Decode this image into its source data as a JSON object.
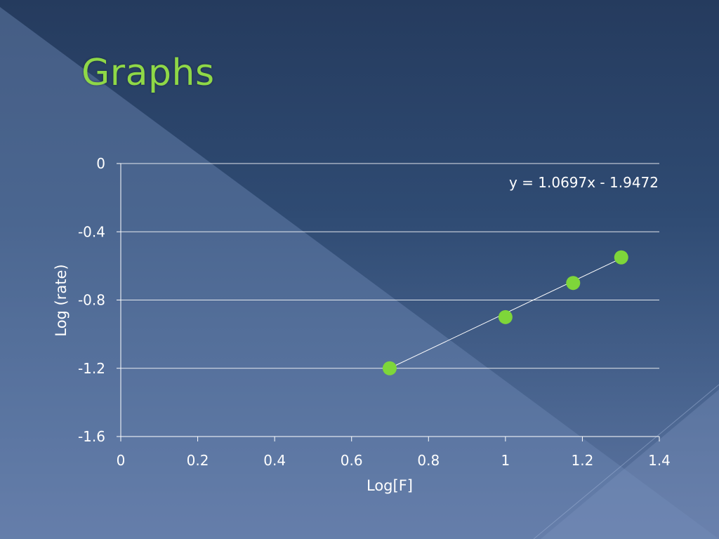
{
  "slide": {
    "title": "Graphs",
    "colors": {
      "title": "#8fd847",
      "marker": "#7ed63a",
      "axis": "#ffffff"
    }
  },
  "chart_data": {
    "type": "scatter",
    "title": "",
    "xlabel": "Log[F]",
    "ylabel": "Log (rate)",
    "xlim": [
      0,
      1.4
    ],
    "ylim": [
      -1.6,
      0
    ],
    "xticks": [
      0,
      0.2,
      0.4,
      0.6,
      0.8,
      1,
      1.2,
      1.4
    ],
    "xtick_labels": [
      "0",
      "0.2",
      "0.4",
      "0.6",
      "0.8",
      "1",
      "1.2",
      "1.4"
    ],
    "yticks": [
      0,
      -0.4,
      -0.8,
      -1.2,
      -1.6
    ],
    "ytick_labels": [
      "0",
      "-0.4",
      "-0.8",
      "-1.2",
      "-1.6"
    ],
    "grid": "horizontal",
    "series": [
      {
        "x": [
          0.699,
          1.0,
          1.176,
          1.301
        ],
        "y": [
          -1.2,
          -0.9,
          -0.7,
          -0.55
        ]
      }
    ],
    "trendline": {
      "type": "linear",
      "slope": 1.0697,
      "intercept": -1.9472,
      "x_range": [
        0.699,
        1.301
      ],
      "equation_label": "y = 1.0697x - 1.9472"
    }
  }
}
